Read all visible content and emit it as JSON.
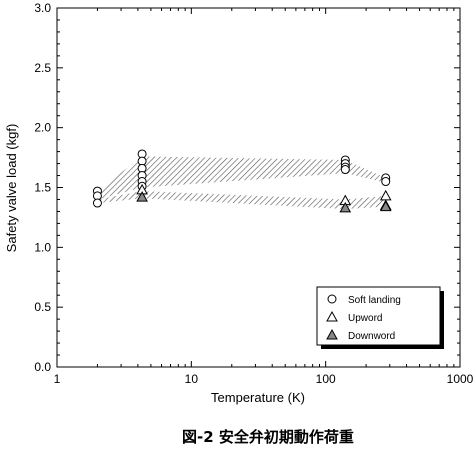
{
  "chart_data": {
    "type": "scatter",
    "xlabel": "Temperature (K)",
    "ylabel": "Safety valve load (kgf)",
    "xscale": "log",
    "xlim": [
      1,
      1000
    ],
    "ylim": [
      0,
      3.0
    ],
    "xticks": [
      "1",
      "10",
      "100",
      "1000"
    ],
    "yticks": [
      "0.0",
      "0.5",
      "1.0",
      "1.5",
      "2.0",
      "2.5",
      "3.0"
    ],
    "grid": false,
    "legend_position": "bottom-right",
    "series": [
      {
        "name": "Soft landing",
        "marker": "circle",
        "points": [
          [
            2,
            1.47
          ],
          [
            2,
            1.43
          ],
          [
            2,
            1.37
          ],
          [
            4.3,
            1.78
          ],
          [
            4.3,
            1.72
          ],
          [
            4.3,
            1.66
          ],
          [
            4.3,
            1.6
          ],
          [
            4.3,
            1.55
          ],
          [
            4.3,
            1.51
          ],
          [
            140,
            1.73
          ],
          [
            140,
            1.7
          ],
          [
            140,
            1.67
          ],
          [
            140,
            1.65
          ],
          [
            280,
            1.58
          ],
          [
            280,
            1.55
          ]
        ]
      },
      {
        "name": "Upword",
        "marker": "triangle-open",
        "points": [
          [
            4.3,
            1.48
          ],
          [
            140,
            1.39
          ],
          [
            280,
            1.43
          ]
        ]
      },
      {
        "name": "Downword",
        "marker": "triangle-filled",
        "points": [
          [
            4.3,
            1.42
          ],
          [
            140,
            1.33
          ],
          [
            280,
            1.35
          ],
          [
            280,
            1.34
          ]
        ]
      }
    ],
    "bands": [
      [
        [
          2,
          1.47
        ],
        [
          4.3,
          1.76
        ],
        [
          140,
          1.73
        ],
        [
          280,
          1.58
        ],
        [
          280,
          1.54
        ],
        [
          140,
          1.62
        ],
        [
          4.3,
          1.5
        ],
        [
          2,
          1.4
        ]
      ],
      [
        [
          2,
          1.4
        ],
        [
          4.3,
          1.47
        ],
        [
          140,
          1.4
        ],
        [
          280,
          1.43
        ],
        [
          280,
          1.34
        ],
        [
          140,
          1.32
        ],
        [
          4.3,
          1.41
        ],
        [
          2,
          1.37
        ]
      ]
    ],
    "colors": {
      "marker_stroke": "#000000",
      "marker_fill": "#ffffff",
      "band_hatch": "#555555",
      "filled_marker": "#888888"
    }
  },
  "caption": "図-2 安全弁初期動作荷重"
}
